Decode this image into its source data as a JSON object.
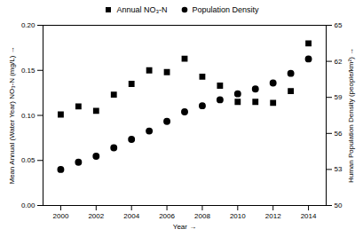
{
  "chart_data": {
    "type": "scatter",
    "xlabel": "Year",
    "ylabel": "Mean Annual (Water Year) NO₃-N (mg/L)",
    "y2label": "Human Population Density (people/km²)",
    "x": [
      2000,
      2001,
      2002,
      2003,
      2004,
      2005,
      2006,
      2007,
      2008,
      2009,
      2010,
      2011,
      2012,
      2013,
      2014
    ],
    "series": [
      {
        "name": "Annual NO₃-N",
        "color": "black",
        "marker": "square",
        "values": [
          0.101,
          0.11,
          0.105,
          0.123,
          0.135,
          0.15,
          0.148,
          0.163,
          0.143,
          0.133,
          0.115,
          0.115,
          0.114,
          0.127,
          0.18
        ]
      },
      {
        "name": "Population Density",
        "color": "black",
        "marker": "circle",
        "axis": "y2",
        "values": [
          53.0,
          53.6,
          54.1,
          54.8,
          55.5,
          56.2,
          57.0,
          57.8,
          58.3,
          58.8,
          59.3,
          59.7,
          60.2,
          61.0,
          62.2
        ]
      }
    ],
    "xlim": [
      1999,
      2015
    ],
    "xticks": [
      2000,
      2002,
      2004,
      2006,
      2008,
      2010,
      2012,
      2014
    ],
    "ylim": [
      0.0,
      0.2
    ],
    "yticks": [
      {
        "value": 0.0,
        "label": "0.00"
      },
      {
        "value": 0.05,
        "label": "0.05"
      },
      {
        "value": 0.1,
        "label": "0.10"
      },
      {
        "value": 0.15,
        "label": "0.15"
      },
      {
        "value": 0.2,
        "label": "0.20"
      }
    ],
    "y2lim": [
      50,
      65
    ],
    "y2ticks": [
      50,
      53,
      56,
      59,
      62,
      65
    ],
    "grid": false,
    "legend": "top"
  }
}
